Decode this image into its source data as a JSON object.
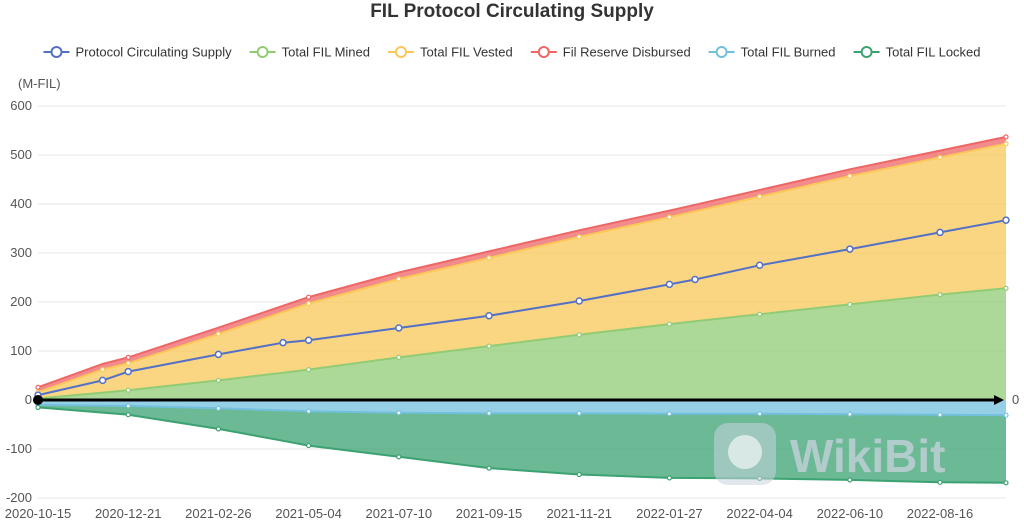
{
  "chart_data": {
    "type": "area",
    "title": "FIL Protocol Circulating Supply",
    "ylabel": "(M-FIL)",
    "xlabel": "",
    "ylim": [
      -200,
      600
    ],
    "yticks": [
      -200,
      -100,
      0,
      100,
      200,
      300,
      400,
      500,
      600
    ],
    "categories": [
      "2020-10-15",
      "2020-12-21",
      "2021-02-26",
      "2021-05-04",
      "2021-07-10",
      "2021-09-15",
      "2021-11-21",
      "2022-01-27",
      "2022-04-04",
      "2022-06-10",
      "2022-08-16"
    ],
    "x_end": "2022-10-04",
    "grid": true,
    "legend_position": "top",
    "zero_line_label": "0",
    "series": [
      {
        "name": "Protocol Circulating Supply",
        "kind": "line",
        "color": "#5470c6",
        "x": [
          "2020-10-15",
          "2020-12-02",
          "2020-12-21",
          "2021-02-26",
          "2021-04-15",
          "2021-05-04",
          "2021-07-10",
          "2021-09-15",
          "2021-11-21",
          "2022-01-27",
          "2022-02-15",
          "2022-04-04",
          "2022-06-10",
          "2022-08-16",
          "2022-10-04"
        ],
        "values": [
          10,
          40,
          58,
          93,
          117,
          122,
          147,
          172,
          202,
          236,
          246,
          275,
          308,
          342,
          367
        ]
      },
      {
        "name": "Total FIL Mined",
        "kind": "stack-positive",
        "color": "#91cc75",
        "x": [
          "2020-10-15",
          "2020-12-21",
          "2021-02-26",
          "2021-05-04",
          "2021-07-10",
          "2021-09-15",
          "2021-11-21",
          "2022-01-27",
          "2022-04-04",
          "2022-06-10",
          "2022-08-16",
          "2022-10-04"
        ],
        "values": [
          3,
          20,
          40,
          62,
          87,
          110,
          133,
          155,
          175,
          195,
          215,
          228
        ]
      },
      {
        "name": "Total FIL Vested",
        "kind": "stack-positive",
        "color": "#fac858",
        "x": [
          "2020-10-15",
          "2020-12-02",
          "2020-12-21",
          "2021-02-26",
          "2021-05-04",
          "2021-07-10",
          "2021-09-15",
          "2021-11-21",
          "2022-01-27",
          "2022-04-04",
          "2022-06-10",
          "2022-08-16",
          "2022-10-04"
        ],
        "values": [
          13,
          47,
          55,
          95,
          135,
          160,
          180,
          200,
          218,
          240,
          262,
          280,
          295
        ]
      },
      {
        "name": "Fil Reserve Disbursed",
        "kind": "stack-positive",
        "color": "#ee6666",
        "x": [
          "2020-10-15",
          "2020-12-21",
          "2021-05-04",
          "2022-10-04"
        ],
        "values": [
          10,
          12,
          13,
          14
        ]
      },
      {
        "name": "Total FIL Burned",
        "kind": "stack-negative",
        "color": "#73c0de",
        "x": [
          "2020-10-15",
          "2020-12-21",
          "2021-02-26",
          "2021-05-04",
          "2021-07-10",
          "2021-09-15",
          "2021-11-21",
          "2022-01-27",
          "2022-04-04",
          "2022-06-10",
          "2022-08-16",
          "2022-10-04"
        ],
        "values": [
          -10,
          -12,
          -17,
          -23,
          -26,
          -27,
          -27,
          -28,
          -28,
          -29,
          -30,
          -31
        ]
      },
      {
        "name": "Total FIL Locked",
        "kind": "stack-negative",
        "color": "#3ba272",
        "x": [
          "2020-10-15",
          "2020-12-21",
          "2021-02-26",
          "2021-05-04",
          "2021-07-10",
          "2021-09-15",
          "2021-11-21",
          "2022-01-27",
          "2022-04-04",
          "2022-06-10",
          "2022-08-16",
          "2022-10-04"
        ],
        "values": [
          -5,
          -18,
          -42,
          -70,
          -90,
          -112,
          -125,
          -131,
          -132,
          -134,
          -138,
          -138
        ]
      }
    ]
  },
  "watermark": {
    "text": "WikiBit",
    "icon": "wikibit-logo-icon"
  }
}
